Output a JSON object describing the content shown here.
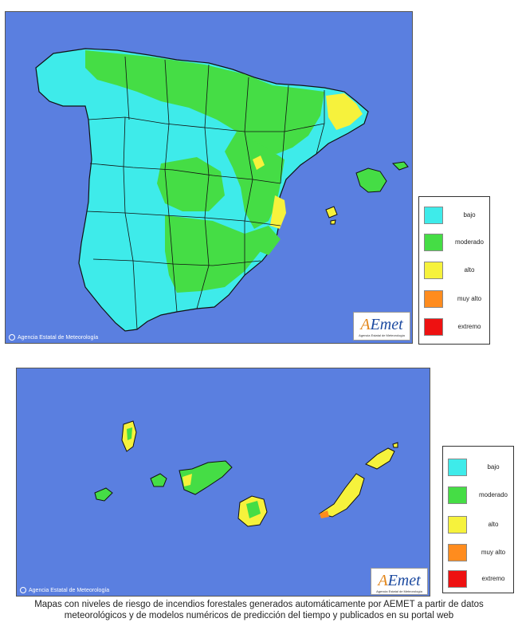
{
  "colors": {
    "sea": "#5a7fe0",
    "bajo": "#3eebea",
    "moderado": "#45dd45",
    "alto": "#f6f23c",
    "muy_alto": "#ff8c1e",
    "extremo": "#ee1111"
  },
  "peninsula": {
    "credit": "Agencia Estatal de Meteorología",
    "logo_text": "AEmet",
    "logo_sub": "Agencia Estatal de Meteorología",
    "legend": [
      {
        "label": "bajo",
        "color": "#3eebea"
      },
      {
        "label": "moderado",
        "color": "#45dd45"
      },
      {
        "label": "alto",
        "color": "#f6f23c"
      },
      {
        "label": "muy alto",
        "color": "#ff8c1e"
      },
      {
        "label": "extremo",
        "color": "#ee1111"
      }
    ]
  },
  "canarias": {
    "credit": "Agencia Estatal de Meteorología",
    "logo_text": "AEmet",
    "logo_sub": "Agencia Estatal de Meteorología",
    "legend": [
      {
        "label": "bajo",
        "color": "#3eebea"
      },
      {
        "label": "moderado",
        "color": "#45dd45"
      },
      {
        "label": "alto",
        "color": "#f6f23c"
      },
      {
        "label": "muy alto",
        "color": "#ff8c1e"
      },
      {
        "label": "extremo",
        "color": "#ee1111"
      }
    ]
  },
  "caption": {
    "line1": "Mapas con niveles de riesgo de incendios forestales generados automáticamente por AEMET a partir de datos",
    "line2": "meteorológicos y de modelos numéricos de predicción del tiempo y publicados en su portal web"
  }
}
